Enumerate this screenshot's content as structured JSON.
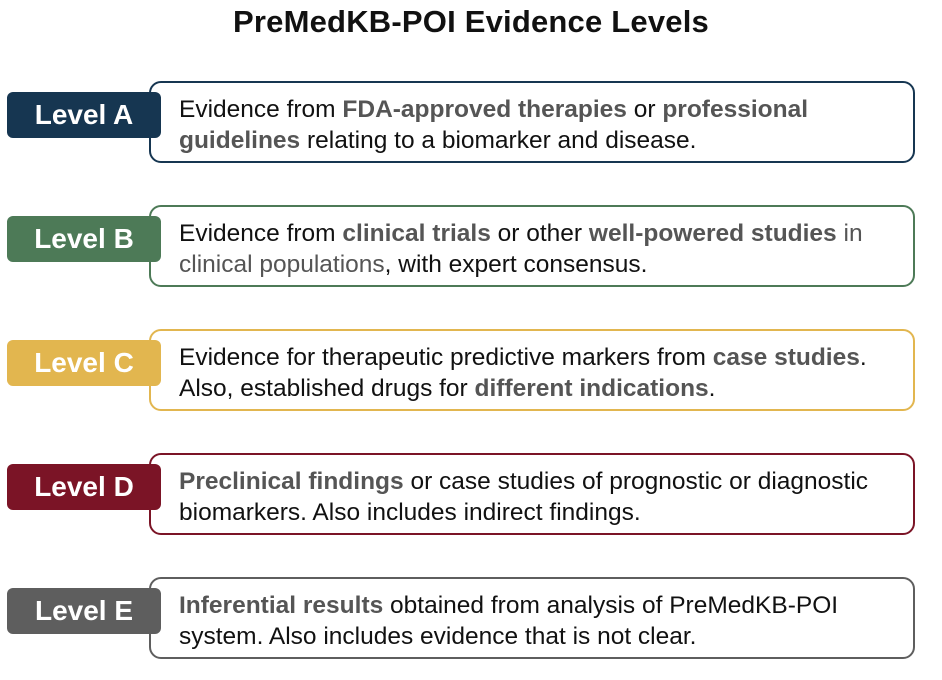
{
  "title": "PreMedKB-POI Evidence Levels",
  "levels": [
    {
      "badge": "Level A",
      "color": "#163651",
      "segments": [
        {
          "text": "Evidence from ",
          "style": "normal"
        },
        {
          "text": "FDA-approved therapies",
          "style": "em"
        },
        {
          "text": " or ",
          "style": "normal"
        },
        {
          "text": "professional guidelines",
          "style": "em"
        },
        {
          "text": " relating to a biomarker and disease.",
          "style": "normal"
        }
      ]
    },
    {
      "badge": "Level B",
      "color": "#4d7a57",
      "segments": [
        {
          "text": "Evidence from ",
          "style": "normal"
        },
        {
          "text": "clinical trials",
          "style": "em"
        },
        {
          "text": " or other ",
          "style": "normal"
        },
        {
          "text": "well-powered studies",
          "style": "em"
        },
        {
          "text": " in clinical populations",
          "style": "soft"
        },
        {
          "text": ", with expert consensus.",
          "style": "normal"
        }
      ]
    },
    {
      "badge": "Level C",
      "color": "#e2b64f",
      "segments": [
        {
          "text": "Evidence for therapeutic predictive markers from ",
          "style": "normal"
        },
        {
          "text": "case studies",
          "style": "em"
        },
        {
          "text": ". Also, established drugs for ",
          "style": "normal"
        },
        {
          "text": "different indications",
          "style": "em"
        },
        {
          "text": ".",
          "style": "normal"
        }
      ]
    },
    {
      "badge": "Level D",
      "color": "#7b1426",
      "segments": [
        {
          "text": "Preclinical findings",
          "style": "em"
        },
        {
          "text": " or case studies of prognostic or diagnostic biomarkers. Also includes indirect findings.",
          "style": "normal"
        }
      ]
    },
    {
      "badge": "Level E",
      "color": "#5e5e5e",
      "segments": [
        {
          "text": "Inferential results",
          "style": "em"
        },
        {
          "text": " obtained from analysis of PreMedKB-POI system. Also includes evidence that is not clear.",
          "style": "normal"
        }
      ]
    }
  ]
}
